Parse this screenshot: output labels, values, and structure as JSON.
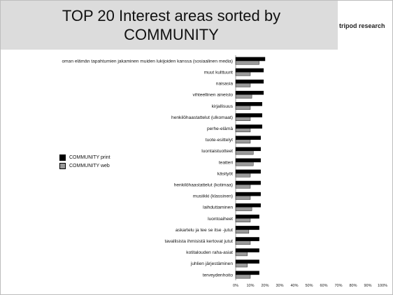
{
  "title": "TOP 20 Interest areas sorted by\nCOMMUNITY",
  "brand": "tripod research",
  "colors": {
    "print": "#000000",
    "web": "#9a9a9a",
    "title_bg": "#dcdcdc"
  },
  "chart_data": {
    "type": "bar",
    "orientation": "horizontal",
    "categories": [
      "oman elämän tapahtumien jakaminen muiden lukijoiden kanssa (sosiaalinen media)",
      "muut kulttuurit",
      "naisasia",
      "vihteellinen aineisto",
      "kirjallisuus",
      "henkilöhaastattelut (ulkomaat)",
      "perhe-elämä",
      "tuote-esittelyt",
      "luontaistuotteet",
      "teatteri",
      "käsityöt",
      "henkilöhaastattelut (kotimaa)",
      "musiikki (klassinen)",
      "laihduttaminen",
      "luontoaiheet",
      "askartelu ja tee se itse -jutut",
      "tavallisista ihmisistä kertovat jutut",
      "kotitalouden raha-asiat",
      "juhlien järjestäminen",
      "terveydenhoito"
    ],
    "series": [
      {
        "name": "COMMUNITY print",
        "values": [
          20,
          19,
          19,
          19,
          18,
          18,
          18,
          17,
          17,
          17,
          17,
          17,
          17,
          17,
          16,
          16,
          16,
          16,
          16,
          16
        ]
      },
      {
        "name": "COMMUNITY web",
        "values": [
          16,
          10,
          10,
          11,
          10,
          10,
          10,
          10,
          12,
          12,
          10,
          10,
          10,
          11,
          10,
          9,
          10,
          8,
          8,
          10
        ]
      }
    ],
    "xlim": [
      0,
      100
    ],
    "xticks": [
      "0%",
      "10%",
      "20%",
      "30%",
      "40%",
      "50%",
      "60%",
      "70%",
      "80%",
      "90%",
      "100%"
    ],
    "legend_position": "left"
  }
}
